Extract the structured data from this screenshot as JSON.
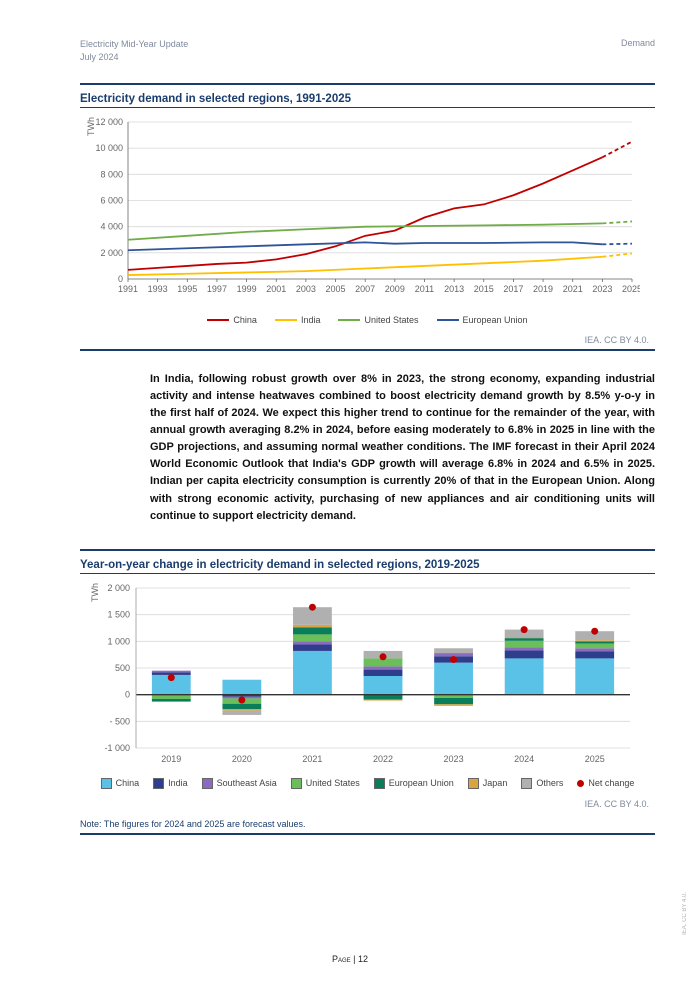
{
  "header": {
    "title": "Electricity Mid-Year Update",
    "date": "July 2024",
    "section": "Demand"
  },
  "chart1": {
    "title": "Electricity demand in selected regions, 1991-2025",
    "attribution": "IEA. CC BY 4.0.",
    "type": "line",
    "y_unit": "TWh",
    "y_ticks": [
      0,
      2000,
      4000,
      6000,
      8000,
      10000,
      12000
    ],
    "y_labels": [
      "0",
      "2 000",
      "4 000",
      "6 000",
      "8 000",
      "10 000",
      "12 000"
    ],
    "ylim": [
      0,
      12000
    ],
    "x_years": [
      1991,
      1993,
      1995,
      1997,
      1999,
      2001,
      2003,
      2005,
      2007,
      2009,
      2011,
      2013,
      2015,
      2017,
      2019,
      2021,
      2023,
      2025
    ],
    "xlim": [
      1991,
      2025
    ],
    "grid_color": "#d9d9d9",
    "axis_color": "#666666",
    "label_fontsize": 9,
    "line_width": 1.8,
    "series": [
      {
        "name": "China",
        "color": "#c00000",
        "legend_label": "China",
        "points": [
          [
            1991,
            700
          ],
          [
            1993,
            850
          ],
          [
            1995,
            1000
          ],
          [
            1997,
            1150
          ],
          [
            1999,
            1250
          ],
          [
            2001,
            1500
          ],
          [
            2003,
            1900
          ],
          [
            2005,
            2500
          ],
          [
            2007,
            3300
          ],
          [
            2009,
            3700
          ],
          [
            2011,
            4700
          ],
          [
            2013,
            5400
          ],
          [
            2015,
            5700
          ],
          [
            2017,
            6400
          ],
          [
            2019,
            7300
          ],
          [
            2021,
            8300
          ],
          [
            2023,
            9300
          ]
        ],
        "forecast": [
          [
            2023,
            9300
          ],
          [
            2024,
            9900
          ],
          [
            2025,
            10500
          ]
        ]
      },
      {
        "name": "India",
        "color": "#ffc000",
        "legend_label": "India",
        "points": [
          [
            1991,
            300
          ],
          [
            1995,
            400
          ],
          [
            1999,
            500
          ],
          [
            2003,
            600
          ],
          [
            2007,
            800
          ],
          [
            2011,
            1000
          ],
          [
            2015,
            1200
          ],
          [
            2019,
            1400
          ],
          [
            2023,
            1700
          ]
        ],
        "forecast": [
          [
            2023,
            1700
          ],
          [
            2025,
            1950
          ]
        ]
      },
      {
        "name": "United States",
        "color": "#70ad47",
        "legend_label": "United States",
        "points": [
          [
            1991,
            3000
          ],
          [
            1995,
            3300
          ],
          [
            1999,
            3600
          ],
          [
            2003,
            3800
          ],
          [
            2007,
            4000
          ],
          [
            2011,
            4050
          ],
          [
            2015,
            4100
          ],
          [
            2019,
            4150
          ],
          [
            2023,
            4250
          ]
        ],
        "forecast": [
          [
            2023,
            4250
          ],
          [
            2025,
            4400
          ]
        ]
      },
      {
        "name": "European Union",
        "color": "#2e5597",
        "legend_label": "European Union",
        "points": [
          [
            1991,
            2200
          ],
          [
            1995,
            2350
          ],
          [
            1999,
            2500
          ],
          [
            2003,
            2650
          ],
          [
            2007,
            2800
          ],
          [
            2009,
            2700
          ],
          [
            2011,
            2750
          ],
          [
            2015,
            2750
          ],
          [
            2019,
            2800
          ],
          [
            2021,
            2800
          ],
          [
            2023,
            2650
          ]
        ],
        "forecast": [
          [
            2023,
            2650
          ],
          [
            2025,
            2700
          ]
        ]
      }
    ]
  },
  "paragraph": "In India, following robust growth over 8% in 2023, the strong economy, expanding industrial activity and intense heatwaves combined to boost electricity demand growth by 8.5% y-o-y in the first half of 2024. We expect this higher trend to continue for the remainder of the year, with annual growth averaging 8.2% in 2024, before easing moderately to 6.8% in 2025 in line with the GDP projections, and assuming normal weather conditions. The IMF forecast in their April 2024 World Economic Outlook that India's GDP growth will average 6.8% in 2024 and 6.5% in 2025. Indian per capita electricity consumption is currently 20% of that in the European Union. Along with strong economic activity, purchasing of new appliances and air conditioning units will continue to support electricity demand.",
  "bold_word": "India",
  "chart2": {
    "title": "Year-on-year change in electricity demand in selected regions, 2019-2025",
    "attribution": "IEA. CC BY 4.0.",
    "type": "stacked-bar-with-markers",
    "y_unit": "TWh",
    "y_ticks": [
      -1000,
      -500,
      0,
      500,
      1000,
      1500,
      2000
    ],
    "y_labels": [
      "-1 000",
      "- 500",
      "0",
      "500",
      "1 000",
      "1 500",
      "2 000"
    ],
    "ylim": [
      -1000,
      2000
    ],
    "x_categories": [
      "2019",
      "2020",
      "2021",
      "2022",
      "2023",
      "2024",
      "2025"
    ],
    "bar_width": 0.55,
    "grid_color": "#d9d9d9",
    "axis_color": "#333333",
    "label_fontsize": 9,
    "stack_colors": {
      "China": "#5bc2e7",
      "India": "#2e3d8c",
      "Southeast Asia": "#8a6bbf",
      "United States": "#6bbf59",
      "European Union": "#0a7d5a",
      "Japan": "#d9a441",
      "Others": "#b0b0b0"
    },
    "marker": {
      "name": "Net change",
      "color": "#c00000",
      "radius": 3.5
    },
    "data": [
      {
        "year": "2019",
        "pos": {
          "China": 370,
          "India": 50,
          "Southeast Asia": 30,
          "United States": 0,
          "Japan": 0,
          "Others": 0
        },
        "neg": {
          "European Union": -50,
          "United States": -80
        },
        "net": 320
      },
      {
        "year": "2020",
        "pos": {
          "China": 280,
          "India": 0
        },
        "neg": {
          "Others": -80,
          "Southeast Asia": -30,
          "United States": -100,
          "European Union": -100,
          "Japan": -30,
          "India": -40
        },
        "net": -100
      },
      {
        "year": "2021",
        "pos": {
          "China": 820,
          "India": 120,
          "Southeast Asia": 60,
          "United States": 130,
          "European Union": 130,
          "Japan": 50,
          "Others": 330
        },
        "neg": {},
        "net": 1640
      },
      {
        "year": "2022",
        "pos": {
          "China": 350,
          "India": 120,
          "Southeast Asia": 60,
          "United States": 150,
          "Others": 140
        },
        "neg": {
          "European Union": -90,
          "Japan": -20
        },
        "net": 710
      },
      {
        "year": "2023",
        "pos": {
          "China": 600,
          "India": 120,
          "Southeast Asia": 60,
          "Others": 90
        },
        "neg": {
          "United States": -60,
          "European Union": -120,
          "Japan": -30
        },
        "net": 660
      },
      {
        "year": "2024",
        "pos": {
          "China": 680,
          "India": 150,
          "Southeast Asia": 60,
          "United States": 120,
          "European Union": 50,
          "Japan": 20,
          "Others": 140
        },
        "neg": {},
        "net": 1220
      },
      {
        "year": "2025",
        "pos": {
          "China": 680,
          "India": 130,
          "Southeast Asia": 60,
          "United States": 90,
          "European Union": 40,
          "Japan": 20,
          "Others": 170
        },
        "neg": {},
        "net": 1190
      }
    ],
    "legend_order": [
      "China",
      "India",
      "Southeast Asia",
      "United States",
      "European Union",
      "Japan",
      "Others"
    ]
  },
  "note": "Note: The figures for 2024 and 2025 are forecast values.",
  "page_label": "Page | 12",
  "side_attr": "IEA. CC BY 4.0."
}
